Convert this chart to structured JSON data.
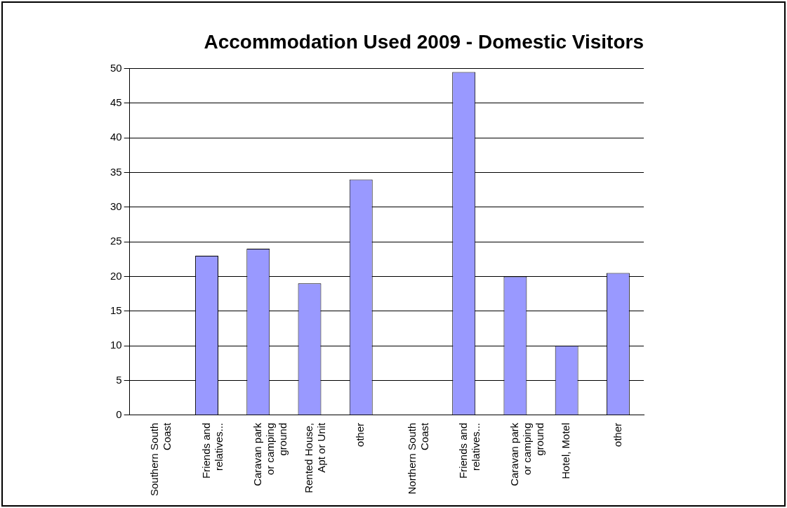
{
  "chart_data": {
    "type": "bar",
    "title": "Accommodation Used 2009 - Domestic Visitors",
    "categories": [
      "Southern South Coast",
      "Friends and relatives...",
      "Caravan park or camping ground",
      "Rented House, Apt or Unit",
      "other",
      "Northern South Coast",
      "Friends and relatives...",
      "Caravan park or camping ground",
      "Hotel, Motel",
      "other"
    ],
    "values": [
      null,
      23,
      24,
      19,
      34,
      null,
      49.5,
      20,
      10,
      20.5
    ],
    "color": "#9999ff",
    "ylim": [
      0,
      50
    ],
    "yticks": [
      0,
      5,
      10,
      15,
      20,
      25,
      30,
      35,
      40,
      45,
      50
    ],
    "grid": "y",
    "legend": false
  }
}
